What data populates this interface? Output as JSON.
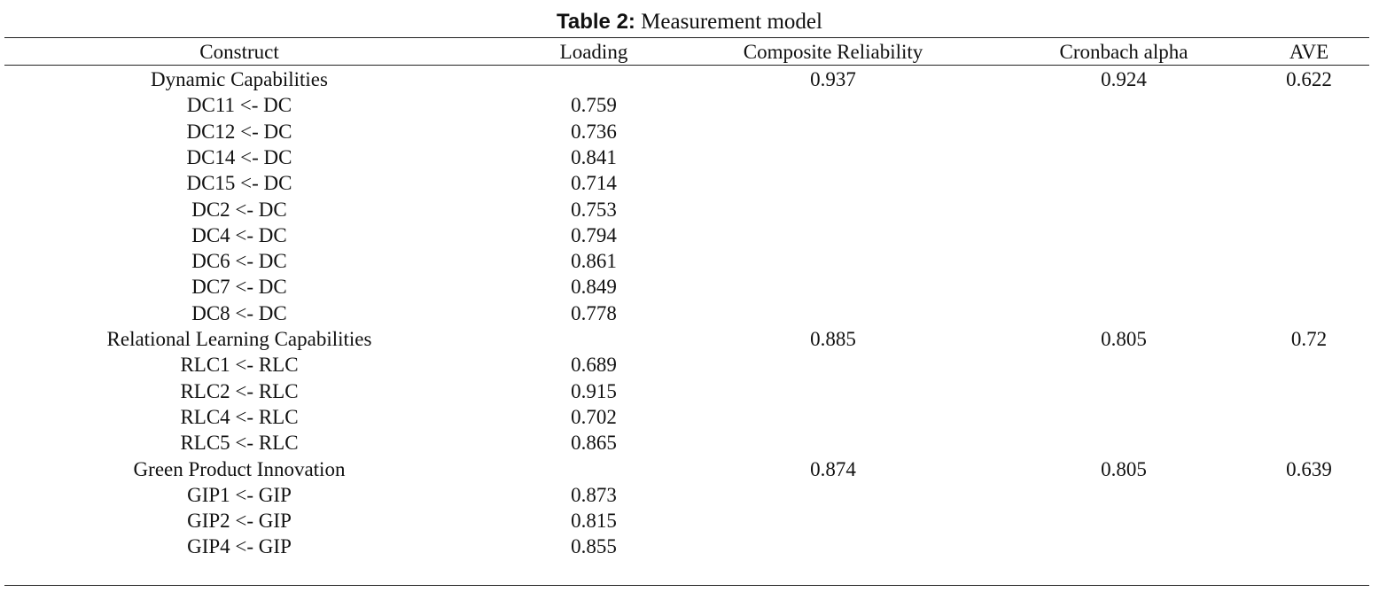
{
  "caption": {
    "label": "Table 2:",
    "title": "Measurement model"
  },
  "table": {
    "columns": [
      "Construct",
      "Loading",
      "Composite Reliability",
      "Cronbach alpha",
      "AVE"
    ],
    "rows": [
      {
        "construct": "Dynamic Capabilities",
        "composite_reliability": "0.937",
        "cronbach_alpha": "0.924",
        "ave": "0.622"
      },
      {
        "construct": "DC11 <- DC",
        "loading": "0.759"
      },
      {
        "construct": "DC12 <- DC",
        "loading": "0.736"
      },
      {
        "construct": "DC14 <- DC",
        "loading": "0.841"
      },
      {
        "construct": "DC15 <- DC",
        "loading": "0.714"
      },
      {
        "construct": "DC2 <- DC",
        "loading": "0.753"
      },
      {
        "construct": "DC4 <- DC",
        "loading": "0.794"
      },
      {
        "construct": "DC6 <- DC",
        "loading": "0.861"
      },
      {
        "construct": "DC7 <- DC",
        "loading": "0.849"
      },
      {
        "construct": "DC8 <- DC",
        "loading": "0.778"
      },
      {
        "construct": "Relational Learning Capabilities",
        "composite_reliability": "0.885",
        "cronbach_alpha": "0.805",
        "ave": "0.72"
      },
      {
        "construct": "RLC1 <- RLC",
        "loading": "0.689"
      },
      {
        "construct": "RLC2 <- RLC",
        "loading": "0.915"
      },
      {
        "construct": "RLC4 <- RLC",
        "loading": "0.702"
      },
      {
        "construct": "RLC5 <- RLC",
        "loading": "0.865"
      },
      {
        "construct": "Green Product Innovation",
        "composite_reliability": "0.874",
        "cronbach_alpha": "0.805",
        "ave": "0.639"
      },
      {
        "construct": "GIP1 <- GIP",
        "loading": "0.873"
      },
      {
        "construct": "GIP2 <- GIP",
        "loading": "0.815"
      },
      {
        "construct": "GIP4 <- GIP",
        "loading": "0.855"
      }
    ]
  }
}
